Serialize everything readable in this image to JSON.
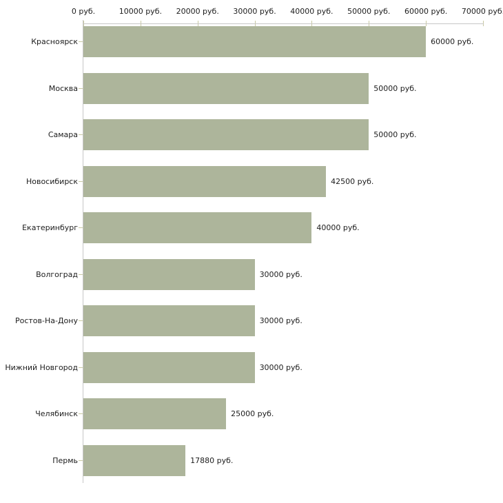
{
  "chart_data": {
    "type": "bar",
    "orientation": "horizontal",
    "categories": [
      "Красноярск",
      "Москва",
      "Самара",
      "Новосибирск",
      "Екатеринбург",
      "Волгоград",
      "Ростов-На-Дону",
      "Нижний Новгород",
      "Челябинск",
      "Пермь"
    ],
    "values": [
      60000,
      50000,
      50000,
      42500,
      40000,
      30000,
      30000,
      30000,
      25000,
      17880
    ],
    "value_labels": [
      "60000 руб.",
      "50000 руб.",
      "50000 руб.",
      "42500 руб.",
      "40000 руб.",
      "30000 руб.",
      "30000 руб.",
      "30000 руб.",
      "25000 руб.",
      "17880 руб."
    ],
    "x_axis": {
      "position": "top",
      "min": 0,
      "max": 70000,
      "tick_interval": 10000,
      "tick_values": [
        0,
        10000,
        20000,
        30000,
        40000,
        50000,
        60000,
        70000
      ],
      "tick_labels": [
        "0 руб.",
        "10000 руб.",
        "20000 руб.",
        "30000 руб.",
        "40000 руб.",
        "50000 руб.",
        "60000 руб.",
        "70000 руб."
      ],
      "unit": "руб."
    },
    "grid": false,
    "legend": false,
    "colors": {
      "bar": "#adb59b",
      "axis_line": "#c6c6c6",
      "tick_mark": "#c9c9a2",
      "text": "#1c1c1c",
      "background": "#ffffff"
    }
  }
}
